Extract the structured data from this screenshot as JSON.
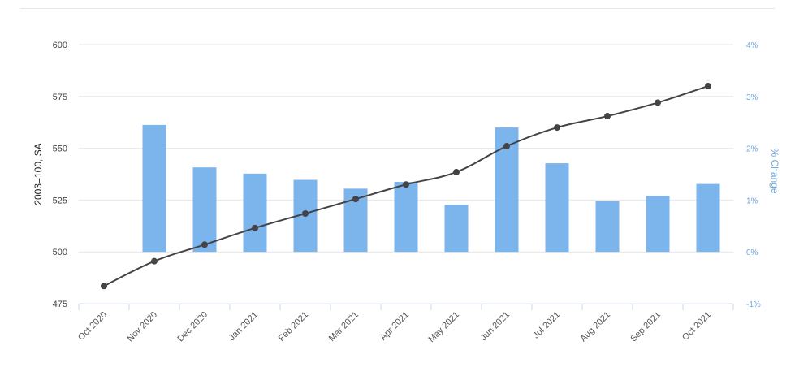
{
  "chart_data": {
    "type": "bar",
    "categories": [
      "Oct 2020",
      "Nov 2020",
      "Dec 2020",
      "Jan 2021",
      "Feb 2021",
      "Mar 2021",
      "Apr 2021",
      "May 2021",
      "Jun 2021",
      "Jul 2021",
      "Aug 2021",
      "Sep 2021",
      "Oct 2021"
    ],
    "series": [
      {
        "type": "bar",
        "axis": "right",
        "color": "#7cb5ec",
        "values": [
          null,
          2.45,
          1.63,
          1.51,
          1.39,
          1.22,
          1.35,
          0.91,
          2.4,
          1.71,
          0.98,
          1.08,
          1.31
        ]
      },
      {
        "type": "line",
        "axis": "left",
        "color": "#434348",
        "values": [
          483.5,
          495.5,
          503.5,
          511.5,
          518.5,
          525.5,
          532.5,
          538.5,
          551.0,
          560.0,
          565.5,
          572.0,
          580.0
        ]
      }
    ],
    "ylabel": "2003=100, SA",
    "y2label": "% Change",
    "ylim": [
      475,
      600
    ],
    "y2lim": [
      -1,
      4
    ],
    "yticks": [
      "475",
      "500",
      "525",
      "550",
      "575",
      "600"
    ],
    "y2ticks": [
      "-1%",
      "0%",
      "1%",
      "2%",
      "3%",
      "4%"
    ],
    "grid": true,
    "legend": "none"
  }
}
